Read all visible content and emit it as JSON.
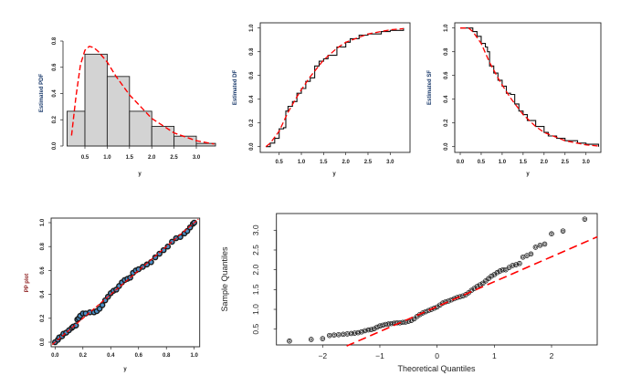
{
  "chart_data": [
    {
      "type": "bar",
      "subtype": "histogram-with-fitted-density",
      "xlabel": "y",
      "ylabel": "Estimated PDF",
      "ylabel_color": "#1a3a6b",
      "xticks": [
        "0.5",
        "1.0",
        "1.5",
        "2.0",
        "2.5",
        "3.0"
      ],
      "yticks": [
        "0.0",
        "0.2",
        "0.4",
        "0.6",
        "0.8"
      ],
      "xlim": [
        0.1,
        3.43
      ],
      "ylim": [
        0,
        0.8
      ],
      "bins": [
        {
          "from": 0.1,
          "to": 0.5,
          "density": 0.265
        },
        {
          "from": 0.5,
          "to": 1.0,
          "density": 0.7
        },
        {
          "from": 1.0,
          "to": 1.5,
          "density": 0.53
        },
        {
          "from": 1.5,
          "to": 2.0,
          "density": 0.265
        },
        {
          "from": 2.0,
          "to": 2.5,
          "density": 0.15
        },
        {
          "from": 2.5,
          "to": 3.0,
          "density": 0.075
        },
        {
          "from": 3.0,
          "to": 3.5,
          "density": 0.02
        }
      ],
      "fitted_curve": {
        "x": [
          0.2,
          0.3,
          0.4,
          0.5,
          0.6,
          0.7,
          0.8,
          1.0,
          1.2,
          1.5,
          2.0,
          2.5,
          3.0,
          3.4
        ],
        "y": [
          0.08,
          0.38,
          0.62,
          0.73,
          0.76,
          0.75,
          0.72,
          0.64,
          0.53,
          0.39,
          0.21,
          0.1,
          0.04,
          0.015
        ]
      },
      "colors": {
        "bars": "#d3d3d3",
        "fitted": "#ff0000"
      }
    },
    {
      "type": "line",
      "xlabel": "y",
      "ylabel": "Estimated DF",
      "ylabel_color": "#1a3a6b",
      "xticks": [
        "0.5",
        "1.0",
        "1.5",
        "2.0",
        "2.5",
        "3.0"
      ],
      "yticks": [
        "0.0",
        "0.2",
        "0.4",
        "0.6",
        "0.8",
        "1.0"
      ],
      "ylim": [
        0,
        1
      ],
      "series": [
        {
          "style": "solid-black-step",
          "x": [
            0.2,
            0.3,
            0.4,
            0.5,
            0.6,
            0.65,
            0.7,
            0.8,
            0.9,
            1.0,
            1.1,
            1.2,
            1.3,
            1.4,
            1.5,
            1.6,
            1.8,
            2.0,
            2.1,
            2.3,
            2.5,
            2.8,
            3.0,
            3.3
          ],
          "y": [
            0.0,
            0.03,
            0.07,
            0.15,
            0.16,
            0.3,
            0.34,
            0.38,
            0.45,
            0.49,
            0.55,
            0.58,
            0.68,
            0.72,
            0.74,
            0.77,
            0.84,
            0.88,
            0.91,
            0.94,
            0.95,
            0.97,
            0.98,
            1.0
          ]
        },
        {
          "style": "dashed-red",
          "x": [
            0.2,
            0.3,
            0.5,
            0.7,
            0.9,
            1.0,
            1.2,
            1.5,
            1.8,
            2.0,
            2.5,
            3.0,
            3.3
          ],
          "y": [
            0.0,
            0.03,
            0.13,
            0.29,
            0.42,
            0.48,
            0.59,
            0.73,
            0.83,
            0.88,
            0.95,
            0.985,
            0.995
          ]
        }
      ]
    },
    {
      "type": "line",
      "xlabel": "y",
      "ylabel": "Estimated SF",
      "ylabel_color": "#1a3a6b",
      "xticks": [
        "0.0",
        "0.5",
        "1.0",
        "1.5",
        "2.0",
        "2.5",
        "3.0"
      ],
      "yticks": [
        "0.0",
        "0.2",
        "0.4",
        "0.6",
        "0.8",
        "1.0"
      ],
      "ylim": [
        0,
        1
      ],
      "series": [
        {
          "style": "solid-black-step",
          "x": [
            0.0,
            0.2,
            0.3,
            0.4,
            0.5,
            0.6,
            0.65,
            0.7,
            0.8,
            0.9,
            1.0,
            1.1,
            1.2,
            1.3,
            1.4,
            1.5,
            1.6,
            1.8,
            2.0,
            2.1,
            2.3,
            2.5,
            2.8,
            3.0,
            3.3
          ],
          "y": [
            1.0,
            1.0,
            0.97,
            0.93,
            0.87,
            0.84,
            0.8,
            0.68,
            0.62,
            0.56,
            0.51,
            0.45,
            0.44,
            0.36,
            0.3,
            0.27,
            0.22,
            0.17,
            0.12,
            0.09,
            0.07,
            0.05,
            0.03,
            0.02,
            0.0
          ]
        },
        {
          "style": "dashed-red",
          "x": [
            0.0,
            0.2,
            0.3,
            0.5,
            0.7,
            0.9,
            1.0,
            1.2,
            1.5,
            1.8,
            2.0,
            2.5,
            3.0,
            3.3
          ],
          "y": [
            1.0,
            1.0,
            0.97,
            0.87,
            0.71,
            0.58,
            0.52,
            0.41,
            0.27,
            0.17,
            0.12,
            0.05,
            0.015,
            0.005
          ]
        }
      ]
    },
    {
      "type": "scatter",
      "subtype": "pp-plot",
      "xlabel": "y",
      "ylabel": "PP plot",
      "ylabel_color": "#8b1a1a",
      "xticks": [
        "0.0",
        "0.2",
        "0.4",
        "0.6",
        "0.8",
        "1.0"
      ],
      "yticks": [
        "0.0",
        "0.2",
        "0.4",
        "0.6",
        "0.8",
        "1.0"
      ],
      "xlim": [
        0,
        1
      ],
      "ylim": [
        0,
        1
      ],
      "points": {
        "x": [
          0.0,
          0.02,
          0.03,
          0.05,
          0.06,
          0.08,
          0.1,
          0.12,
          0.13,
          0.15,
          0.16,
          0.17,
          0.18,
          0.2,
          0.22,
          0.25,
          0.28,
          0.3,
          0.32,
          0.34,
          0.36,
          0.38,
          0.4,
          0.42,
          0.44,
          0.46,
          0.48,
          0.5,
          0.52,
          0.54,
          0.56,
          0.58,
          0.6,
          0.63,
          0.66,
          0.69,
          0.72,
          0.75,
          0.78,
          0.81,
          0.84,
          0.87,
          0.9,
          0.93,
          0.95,
          0.97,
          0.99,
          1.0
        ],
        "y": [
          0.0,
          0.02,
          0.04,
          0.05,
          0.07,
          0.08,
          0.1,
          0.12,
          0.13,
          0.14,
          0.19,
          0.2,
          0.22,
          0.24,
          0.24,
          0.25,
          0.25,
          0.26,
          0.28,
          0.31,
          0.35,
          0.38,
          0.41,
          0.43,
          0.44,
          0.47,
          0.5,
          0.52,
          0.53,
          0.54,
          0.58,
          0.6,
          0.61,
          0.63,
          0.65,
          0.67,
          0.71,
          0.74,
          0.77,
          0.8,
          0.84,
          0.87,
          0.88,
          0.91,
          0.93,
          0.96,
          0.99,
          1.0
        ]
      },
      "reference_line": {
        "slope": 1,
        "intercept": 0
      },
      "colors": {
        "points": "#1a1a1a",
        "point_fill": "#4a90c8",
        "line": "#ff0000"
      }
    },
    {
      "type": "scatter",
      "subtype": "qq-plot",
      "xlabel": "Theoretical Quantiles",
      "ylabel": "Sample Quantiles",
      "xticks": [
        "−2",
        "−1",
        "0",
        "1",
        "2"
      ],
      "yticks": [
        "0.5",
        "1.0",
        "1.5",
        "2.0",
        "2.5",
        "3.0"
      ],
      "points": {
        "x": [
          -2.58,
          -2.2,
          -2.0,
          -1.88,
          -1.8,
          -1.72,
          -1.64,
          -1.57,
          -1.5,
          -1.44,
          -1.38,
          -1.32,
          -1.26,
          -1.2,
          -1.15,
          -1.1,
          -1.05,
          -1.0,
          -0.95,
          -0.9,
          -0.85,
          -0.8,
          -0.75,
          -0.7,
          -0.65,
          -0.6,
          -0.55,
          -0.5,
          -0.45,
          -0.4,
          -0.35,
          -0.3,
          -0.25,
          -0.2,
          -0.15,
          -0.1,
          -0.05,
          0.0,
          0.05,
          0.1,
          0.15,
          0.2,
          0.25,
          0.3,
          0.35,
          0.4,
          0.45,
          0.5,
          0.55,
          0.6,
          0.65,
          0.7,
          0.75,
          0.8,
          0.85,
          0.9,
          0.95,
          1.0,
          1.05,
          1.1,
          1.15,
          1.2,
          1.26,
          1.32,
          1.38,
          1.44,
          1.5,
          1.57,
          1.64,
          1.72,
          1.8,
          1.88,
          2.0,
          2.2,
          2.58
        ],
        "y": [
          0.2,
          0.24,
          0.26,
          0.34,
          0.35,
          0.36,
          0.37,
          0.38,
          0.39,
          0.4,
          0.41,
          0.43,
          0.46,
          0.48,
          0.49,
          0.51,
          0.55,
          0.58,
          0.6,
          0.62,
          0.63,
          0.64,
          0.65,
          0.66,
          0.66,
          0.67,
          0.68,
          0.7,
          0.72,
          0.76,
          0.82,
          0.87,
          0.91,
          0.94,
          0.97,
          1.0,
          1.03,
          1.06,
          1.11,
          1.16,
          1.19,
          1.21,
          1.24,
          1.27,
          1.3,
          1.32,
          1.34,
          1.37,
          1.42,
          1.48,
          1.53,
          1.58,
          1.62,
          1.66,
          1.72,
          1.78,
          1.84,
          1.88,
          1.93,
          1.97,
          2.0,
          2.0,
          2.06,
          2.11,
          2.13,
          2.16,
          2.32,
          2.36,
          2.4,
          2.57,
          2.62,
          2.65,
          2.91,
          2.98,
          3.28
        ]
      },
      "reference_line": {
        "slope": 0.63,
        "intercept": 1.07
      },
      "colors": {
        "points": "#1a1a1a",
        "line": "#ff0000"
      }
    }
  ]
}
